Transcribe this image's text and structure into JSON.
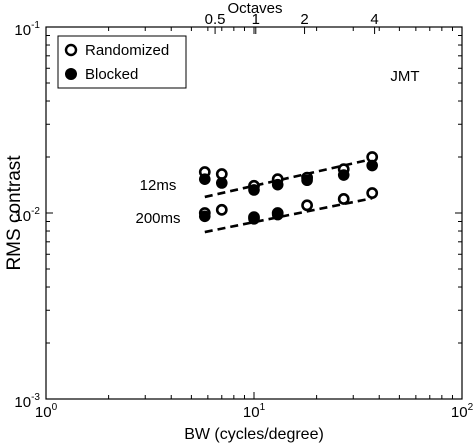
{
  "chart_data": {
    "type": "scatter",
    "title": "",
    "xlabel": "BW (cycles/degree)",
    "ylabel": "RMS contrast",
    "xscale": "log",
    "yscale": "log",
    "xlim": [
      1,
      100
    ],
    "ylim": [
      0.001,
      0.1
    ],
    "x_ticks": [
      {
        "base": "10",
        "exp": "0"
      },
      {
        "base": "10",
        "exp": "1"
      },
      {
        "base": "10",
        "exp": "2"
      }
    ],
    "y_ticks": [
      {
        "base": "10",
        "exp": "-1"
      },
      {
        "base": "10",
        "exp": "-2"
      },
      {
        "base": "10",
        "exp": "-3"
      }
    ],
    "top_axis": {
      "label": "Octaves",
      "ticks": [
        {
          "label": "0.5",
          "x": 6.5
        },
        {
          "label": "1",
          "x": 10.2
        },
        {
          "label": "2",
          "x": 17.5
        },
        {
          "label": "4",
          "x": 38
        }
      ]
    },
    "legend": {
      "position": "top-left",
      "entries": [
        {
          "label": "Randomized",
          "marker": "open-circle"
        },
        {
          "label": "Blocked",
          "marker": "filled-circle"
        }
      ]
    },
    "annotations": {
      "observer": "JMT",
      "duration_labels": [
        "12ms",
        "200ms"
      ]
    },
    "series": [
      {
        "name": "Randomized",
        "condition": "12ms",
        "marker": "open",
        "points": [
          [
            5.8,
            0.0166
          ],
          [
            7.0,
            0.0162
          ],
          [
            10.0,
            0.014
          ],
          [
            13.0,
            0.0152
          ],
          [
            18.0,
            0.0155
          ],
          [
            27.0,
            0.0172
          ],
          [
            37.0,
            0.02
          ]
        ]
      },
      {
        "name": "Blocked",
        "condition": "12ms",
        "marker": "filled",
        "points": [
          [
            5.8,
            0.0152
          ],
          [
            7.0,
            0.0145
          ],
          [
            10.0,
            0.0133
          ],
          [
            13.0,
            0.0142
          ],
          [
            18.0,
            0.015
          ],
          [
            27.0,
            0.016
          ],
          [
            37.0,
            0.018
          ]
        ]
      },
      {
        "name": "Randomized",
        "condition": "200ms",
        "marker": "open",
        "points": [
          [
            5.8,
            0.01
          ],
          [
            7.0,
            0.0104
          ],
          [
            10.0,
            0.0095
          ],
          [
            13.0,
            0.01
          ],
          [
            18.0,
            0.011
          ],
          [
            27.0,
            0.0119
          ],
          [
            37.0,
            0.0128
          ]
        ]
      },
      {
        "name": "Blocked",
        "condition": "200ms",
        "marker": "filled",
        "points": [
          [
            5.8,
            0.0096
          ],
          [
            10.0,
            0.0093
          ],
          [
            13.0,
            0.0098
          ]
        ]
      }
    ],
    "fit_lines": [
      {
        "condition": "12ms",
        "points": [
          [
            5.8,
            0.0122
          ],
          [
            37.0,
            0.0195
          ]
        ]
      },
      {
        "condition": "200ms",
        "points": [
          [
            5.8,
            0.0079
          ],
          [
            37.0,
            0.012
          ]
        ]
      }
    ]
  }
}
